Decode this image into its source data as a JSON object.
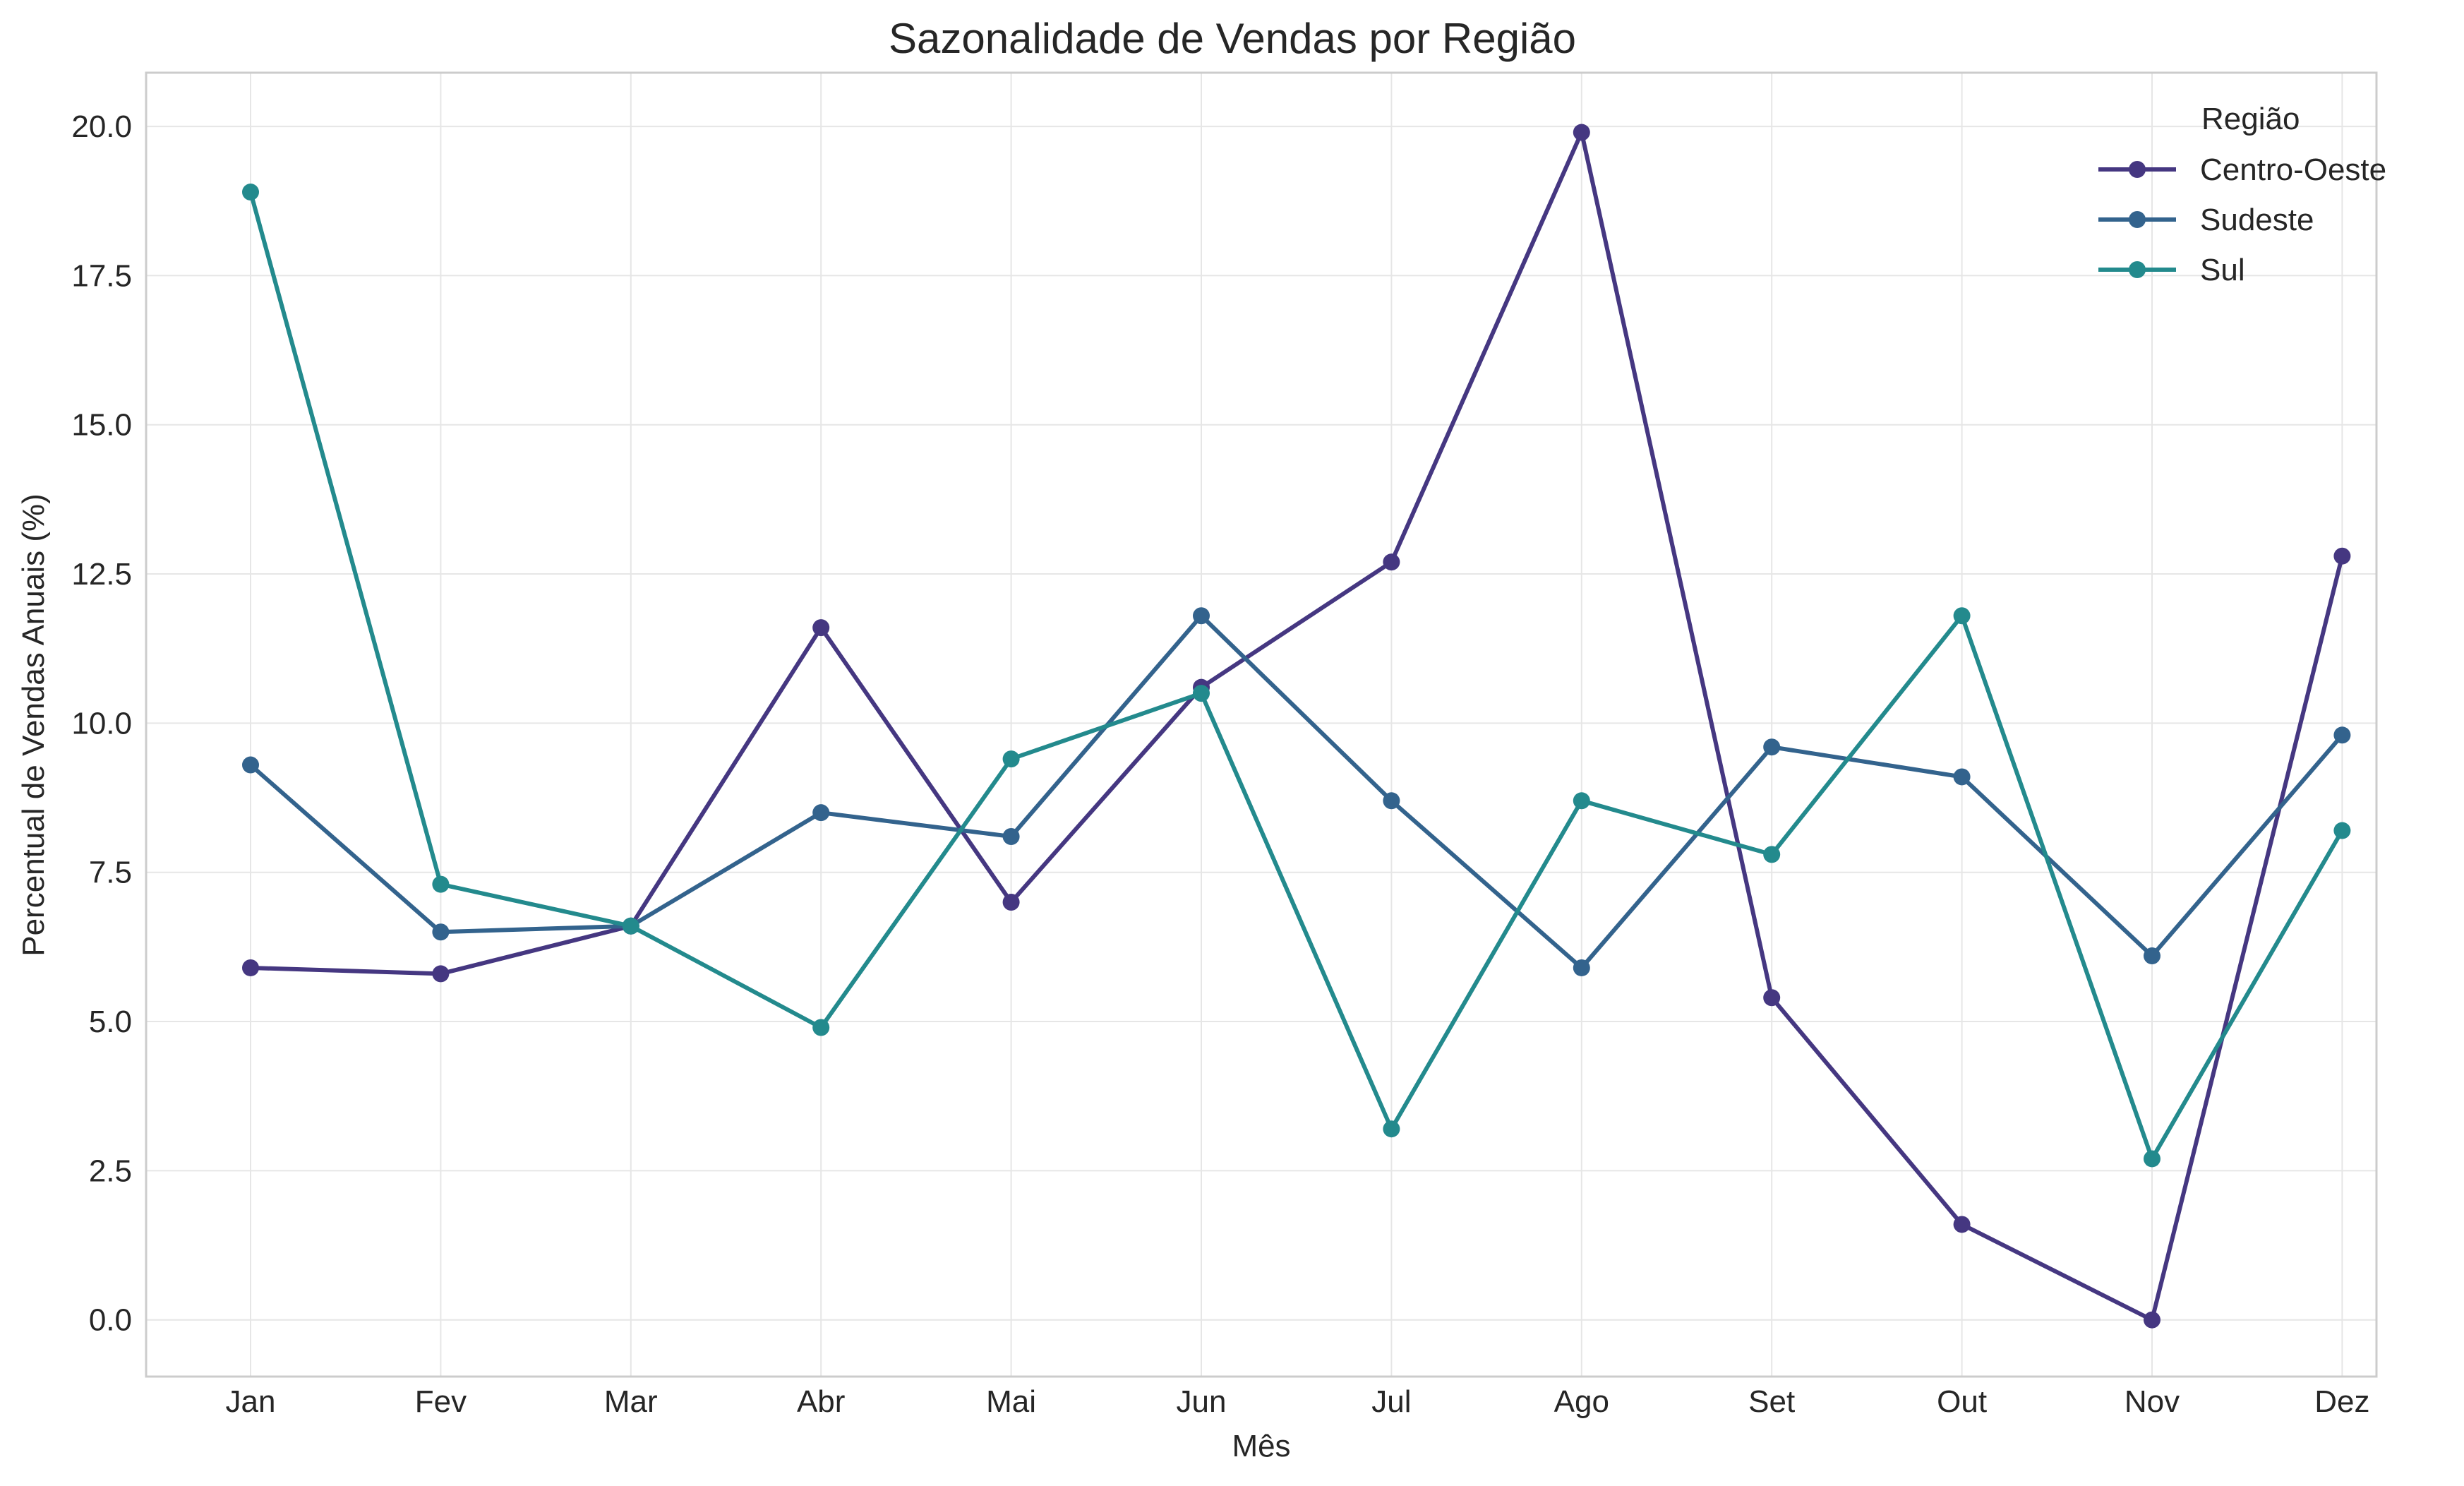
{
  "chart_data": {
    "type": "line",
    "title": "Sazonalidade de Vendas por Região",
    "xlabel": "Mês",
    "ylabel": "Percentual de Vendas Anuais (%)",
    "categories": [
      "Jan",
      "Fev",
      "Mar",
      "Abr",
      "Mai",
      "Jun",
      "Jul",
      "Ago",
      "Set",
      "Out",
      "Nov",
      "Dez"
    ],
    "ylim": [
      -0.95,
      20.9
    ],
    "yticks": [
      0.0,
      2.5,
      5.0,
      7.5,
      10.0,
      12.5,
      15.0,
      17.5,
      20.0
    ],
    "ytick_labels": [
      "0.0",
      "2.5",
      "5.0",
      "7.5",
      "10.0",
      "12.5",
      "15.0",
      "17.5",
      "20.0"
    ],
    "grid": true,
    "legend": {
      "title": "Região",
      "position": "top-right"
    },
    "series": [
      {
        "name": "Centro-Oeste",
        "color": "#453781",
        "values": [
          5.9,
          5.8,
          6.6,
          11.6,
          7.0,
          10.6,
          12.7,
          19.9,
          5.4,
          1.6,
          0.0,
          12.8
        ]
      },
      {
        "name": "Sudeste",
        "color": "#33638d",
        "values": [
          9.3,
          6.5,
          6.6,
          8.5,
          8.1,
          11.8,
          8.7,
          5.9,
          9.6,
          9.1,
          6.1,
          9.8
        ]
      },
      {
        "name": "Sul",
        "color": "#238a8d",
        "values": [
          18.9,
          7.3,
          6.6,
          4.9,
          9.4,
          10.5,
          3.2,
          8.7,
          7.8,
          11.8,
          2.7,
          8.2
        ]
      }
    ]
  }
}
